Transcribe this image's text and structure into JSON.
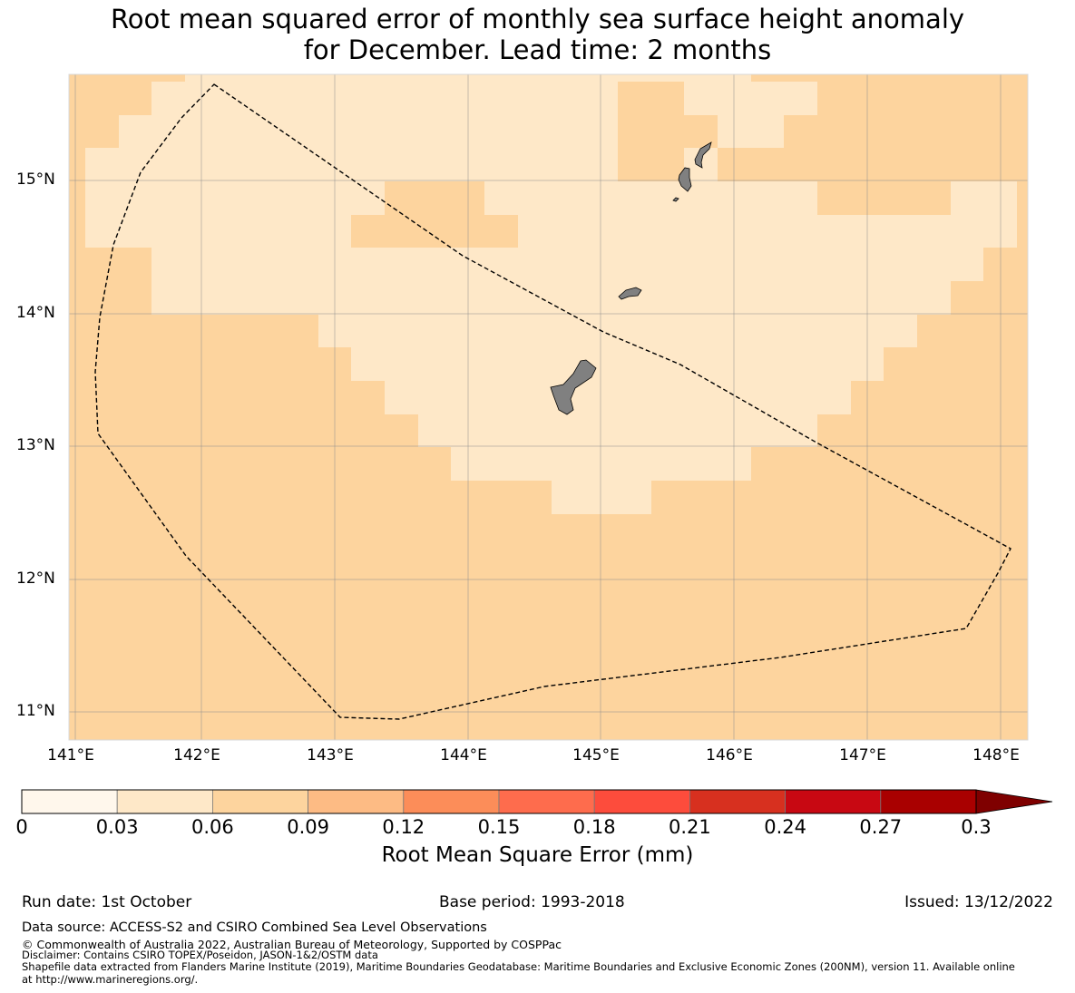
{
  "title": {
    "line1": "Root mean squared error of monthly sea surface height anomaly",
    "line2": "for December. Lead time: 2 months"
  },
  "map": {
    "lat_labels": [
      "15°N",
      "14°N",
      "13°N",
      "12°N",
      "11°N"
    ],
    "lon_labels": [
      "141°E",
      "142°E",
      "143°E",
      "144°E",
      "145°E",
      "146°E",
      "147°E",
      "148°E"
    ],
    "colors": {
      "ocean_high": "#fdd49e",
      "ocean_low": "#fee8c8",
      "land": "#808080",
      "grid": "#8c8c8c",
      "boundary": "#000000"
    }
  },
  "colorbar": {
    "ticks": [
      "0",
      "0.03",
      "0.06",
      "0.09",
      "0.12",
      "0.15",
      "0.18",
      "0.21",
      "0.24",
      "0.27",
      "0.3"
    ],
    "colors": [
      "#fff7ec",
      "#fee8c8",
      "#fdd49e",
      "#fdbb84",
      "#fc8d59",
      "#fe6c4d",
      "#fd4c3c",
      "#d7301f",
      "#c80812",
      "#a90000",
      "#7f0000"
    ],
    "label": "Root Mean Square Error (mm)"
  },
  "footer": {
    "run_date": "Run date: 1st October",
    "base_period": "Base period: 1993-2018",
    "issued": "Issued: 13/12/2022",
    "data_source": "Data source: ACCESS-S2 and CSIRO Combined Sea Level Observations",
    "copyright": "© Commonwealth of Australia 2022, Australian Bureau of Meteorology, Supported by COSPPac",
    "disclaimer": "Disclaimer: Contains CSIRO TOPEX/Poseidon, JASON-1&2/OSTM data",
    "shapefile_line1": "Shapefile data extracted from Flanders Marine Institute (2019), Maritime Boundaries Geodatabase: Maritime Boundaries and Exclusive Economic Zones (200NM), version 11. Available online",
    "shapefile_line2": "at http://www.marineregions.org/."
  }
}
